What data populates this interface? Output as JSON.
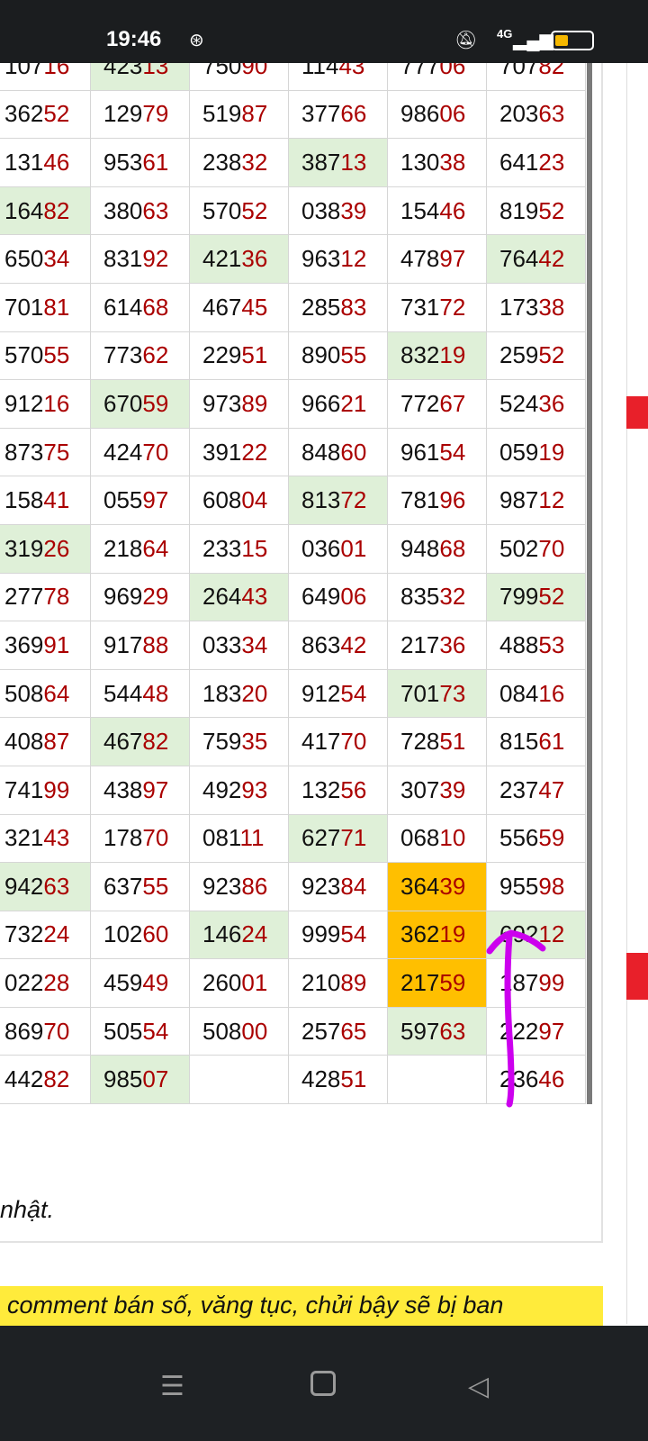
{
  "status_bar": {
    "time": "19:46",
    "icons": [
      "compass-icon",
      "mute-icon",
      "4g-icon",
      "signal-icon",
      "battery-icon"
    ]
  },
  "colors": {
    "highlight_green": "#dff0d8",
    "highlight_orange": "#ffbf00",
    "tail_digits": "#a00000",
    "annotation_arrow": "#cc00ee"
  },
  "table": {
    "rows": [
      [
        {
          "h": "107",
          "t": "16"
        },
        {
          "h": "423",
          "t": "13",
          "bg": "g"
        },
        {
          "h": "750",
          "t": "90"
        },
        {
          "h": "114",
          "t": "43"
        },
        {
          "h": "777",
          "t": "06"
        },
        {
          "h": "707",
          "t": "82"
        }
      ],
      [
        {
          "h": "362",
          "t": "52"
        },
        {
          "h": "129",
          "t": "79"
        },
        {
          "h": "519",
          "t": "87"
        },
        {
          "h": "377",
          "t": "66"
        },
        {
          "h": "986",
          "t": "06"
        },
        {
          "h": "203",
          "t": "63"
        }
      ],
      [
        {
          "h": "131",
          "t": "46"
        },
        {
          "h": "953",
          "t": "61"
        },
        {
          "h": "238",
          "t": "32"
        },
        {
          "h": "387",
          "t": "13",
          "bg": "g"
        },
        {
          "h": "130",
          "t": "38"
        },
        {
          "h": "641",
          "t": "23"
        }
      ],
      [
        {
          "h": "164",
          "t": "82",
          "bg": "g"
        },
        {
          "h": "380",
          "t": "63"
        },
        {
          "h": "570",
          "t": "52"
        },
        {
          "h": "038",
          "t": "39"
        },
        {
          "h": "154",
          "t": "46"
        },
        {
          "h": "819",
          "t": "52"
        }
      ],
      [
        {
          "h": "650",
          "t": "34"
        },
        {
          "h": "831",
          "t": "92"
        },
        {
          "h": "421",
          "t": "36",
          "bg": "g"
        },
        {
          "h": "963",
          "t": "12"
        },
        {
          "h": "478",
          "t": "97"
        },
        {
          "h": "764",
          "t": "42",
          "bg": "g"
        }
      ],
      [
        {
          "h": "701",
          "t": "81"
        },
        {
          "h": "614",
          "t": "68"
        },
        {
          "h": "467",
          "t": "45"
        },
        {
          "h": "285",
          "t": "83"
        },
        {
          "h": "731",
          "t": "72"
        },
        {
          "h": "173",
          "t": "38"
        }
      ],
      [
        {
          "h": "570",
          "t": "55"
        },
        {
          "h": "773",
          "t": "62"
        },
        {
          "h": "229",
          "t": "51"
        },
        {
          "h": "890",
          "t": "55"
        },
        {
          "h": "832",
          "t": "19",
          "bg": "g"
        },
        {
          "h": "259",
          "t": "52"
        }
      ],
      [
        {
          "h": "912",
          "t": "16"
        },
        {
          "h": "670",
          "t": "59",
          "bg": "g"
        },
        {
          "h": "973",
          "t": "89"
        },
        {
          "h": "966",
          "t": "21"
        },
        {
          "h": "772",
          "t": "67"
        },
        {
          "h": "524",
          "t": "36"
        }
      ],
      [
        {
          "h": "873",
          "t": "75"
        },
        {
          "h": "424",
          "t": "70"
        },
        {
          "h": "391",
          "t": "22"
        },
        {
          "h": "848",
          "t": "60"
        },
        {
          "h": "961",
          "t": "54"
        },
        {
          "h": "059",
          "t": "19"
        }
      ],
      [
        {
          "h": "158",
          "t": "41"
        },
        {
          "h": "055",
          "t": "97"
        },
        {
          "h": "608",
          "t": "04"
        },
        {
          "h": "813",
          "t": "72",
          "bg": "g"
        },
        {
          "h": "781",
          "t": "96"
        },
        {
          "h": "987",
          "t": "12"
        }
      ],
      [
        {
          "h": "319",
          "t": "26",
          "bg": "g"
        },
        {
          "h": "218",
          "t": "64"
        },
        {
          "h": "233",
          "t": "15"
        },
        {
          "h": "036",
          "t": "01"
        },
        {
          "h": "948",
          "t": "68"
        },
        {
          "h": "502",
          "t": "70"
        }
      ],
      [
        {
          "h": "277",
          "t": "78"
        },
        {
          "h": "969",
          "t": "29"
        },
        {
          "h": "264",
          "t": "43",
          "bg": "g"
        },
        {
          "h": "649",
          "t": "06"
        },
        {
          "h": "835",
          "t": "32"
        },
        {
          "h": "799",
          "t": "52",
          "bg": "g"
        }
      ],
      [
        {
          "h": "369",
          "t": "91"
        },
        {
          "h": "917",
          "t": "88"
        },
        {
          "h": "033",
          "t": "34"
        },
        {
          "h": "863",
          "t": "42"
        },
        {
          "h": "217",
          "t": "36"
        },
        {
          "h": "488",
          "t": "53"
        }
      ],
      [
        {
          "h": "508",
          "t": "64"
        },
        {
          "h": "544",
          "t": "48"
        },
        {
          "h": "183",
          "t": "20"
        },
        {
          "h": "912",
          "t": "54"
        },
        {
          "h": "701",
          "t": "73",
          "bg": "g"
        },
        {
          "h": "084",
          "t": "16"
        }
      ],
      [
        {
          "h": "408",
          "t": "87"
        },
        {
          "h": "467",
          "t": "82",
          "bg": "g"
        },
        {
          "h": "759",
          "t": "35"
        },
        {
          "h": "417",
          "t": "70"
        },
        {
          "h": "728",
          "t": "51"
        },
        {
          "h": "815",
          "t": "61"
        }
      ],
      [
        {
          "h": "741",
          "t": "99"
        },
        {
          "h": "438",
          "t": "97"
        },
        {
          "h": "492",
          "t": "93"
        },
        {
          "h": "132",
          "t": "56"
        },
        {
          "h": "307",
          "t": "39"
        },
        {
          "h": "237",
          "t": "47"
        }
      ],
      [
        {
          "h": "321",
          "t": "43"
        },
        {
          "h": "178",
          "t": "70"
        },
        {
          "h": "081",
          "t": "11"
        },
        {
          "h": "627",
          "t": "71",
          "bg": "g"
        },
        {
          "h": "068",
          "t": "10"
        },
        {
          "h": "556",
          "t": "59"
        }
      ],
      [
        {
          "h": "942",
          "t": "63",
          "bg": "g"
        },
        {
          "h": "637",
          "t": "55"
        },
        {
          "h": "923",
          "t": "86"
        },
        {
          "h": "923",
          "t": "84"
        },
        {
          "h": "364",
          "t": "39",
          "bg": "o"
        },
        {
          "h": "955",
          "t": "98"
        }
      ],
      [
        {
          "h": "732",
          "t": "24"
        },
        {
          "h": "102",
          "t": "60"
        },
        {
          "h": "146",
          "t": "24",
          "bg": "g"
        },
        {
          "h": "999",
          "t": "54"
        },
        {
          "h": "362",
          "t": "19",
          "bg": "o"
        },
        {
          "h": "692",
          "t": "12",
          "bg": "g"
        }
      ],
      [
        {
          "h": "022",
          "t": "28"
        },
        {
          "h": "459",
          "t": "49"
        },
        {
          "h": "260",
          "t": "01"
        },
        {
          "h": "210",
          "t": "89"
        },
        {
          "h": "217",
          "t": "59",
          "bg": "o"
        },
        {
          "h": "187",
          "t": "99"
        }
      ],
      [
        {
          "h": "869",
          "t": "70"
        },
        {
          "h": "505",
          "t": "54"
        },
        {
          "h": "508",
          "t": "00"
        },
        {
          "h": "257",
          "t": "65"
        },
        {
          "h": "597",
          "t": "63",
          "bg": "g"
        },
        {
          "h": "222",
          "t": "97"
        }
      ],
      [
        {
          "h": "442",
          "t": "82"
        },
        {
          "h": "985",
          "t": "07",
          "bg": "g"
        },
        {
          "h": "",
          "t": ""
        },
        {
          "h": "428",
          "t": "51"
        },
        {
          "h": "",
          "t": ""
        },
        {
          "h": "236",
          "t": "46"
        }
      ]
    ]
  },
  "note_text": "nhật.",
  "banner_text": "comment bán số, văng tục, chửi bậy sẽ bị ban",
  "nav_bar": {
    "buttons": [
      "menu-icon",
      "home-icon",
      "back-icon"
    ]
  }
}
